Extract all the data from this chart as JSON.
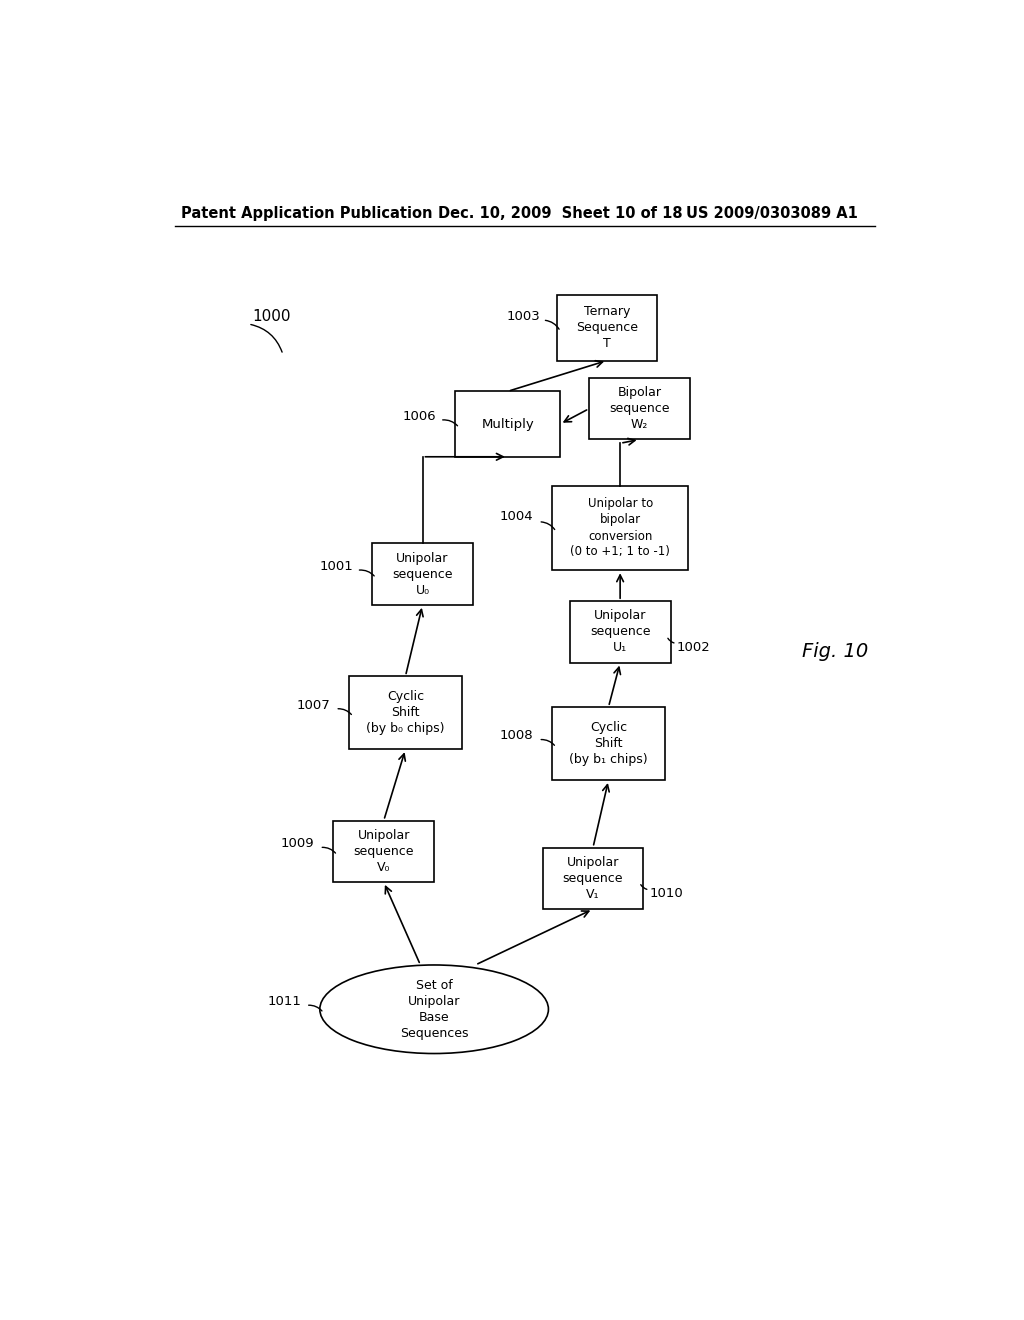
{
  "header_left": "Patent Application Publication",
  "header_mid": "Dec. 10, 2009  Sheet 10 of 18",
  "header_right": "US 2009/0303089 A1",
  "fig_label": "Fig. 10",
  "background": "#ffffff"
}
